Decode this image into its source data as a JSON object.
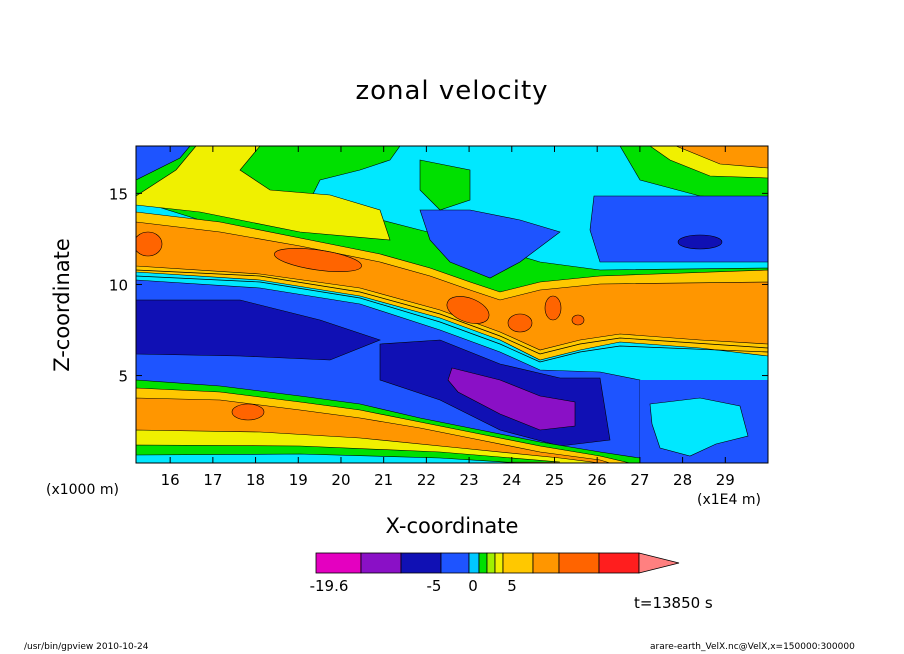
{
  "chart_data": {
    "type": "contour",
    "title": "zonal velocity",
    "xlabel": "X-coordinate",
    "ylabel": "Z-coordinate",
    "x_unit": "(x1E4 m)",
    "y_unit": "(x1000 m)",
    "xlim": [
      15.2,
      30
    ],
    "ylim": [
      0.2,
      17.6
    ],
    "x_ticks": [
      "16",
      "17",
      "18",
      "19",
      "20",
      "21",
      "22",
      "23",
      "24",
      "25",
      "26",
      "27",
      "28",
      "29"
    ],
    "y_ticks": [
      "5",
      "10",
      "15"
    ],
    "colorbar": {
      "tick_labels": [
        "-19.6",
        "-5",
        "0",
        "5"
      ],
      "colors": [
        "#e400c0",
        "#8a10c6",
        "#1010b4",
        "#1e54ff",
        "#00c8ff",
        "#00e000",
        "#a0f000",
        "#f0f000",
        "#ffc800",
        "#ff9600",
        "#ff6400",
        "#ff1e1e",
        "#ff8080"
      ]
    },
    "annotation": "t=13850 s"
  },
  "footer": {
    "left": "/usr/bin/gpview   2010-10-24",
    "right": "arare-earth_VelX.nc@VelX,x=150000:300000"
  }
}
